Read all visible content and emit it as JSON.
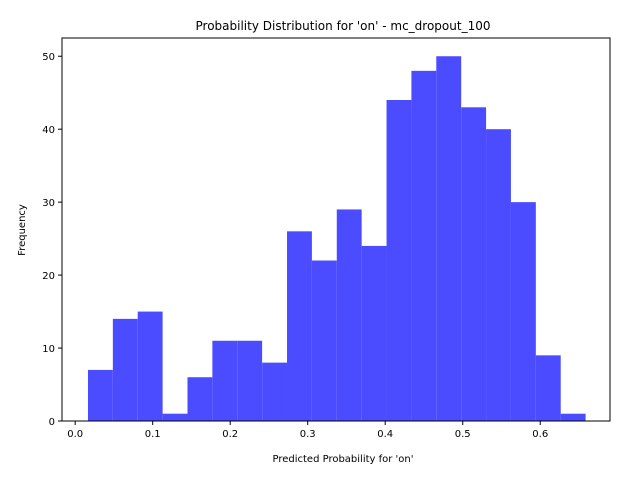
{
  "chart_data": {
    "type": "histogram",
    "title": "Probability Distribution for 'on' - mc_dropout_100",
    "xlabel": "Predicted Probability for 'on'",
    "ylabel": "Frequency",
    "xlim": [
      -0.017,
      0.69
    ],
    "ylim": [
      0,
      52.5
    ],
    "xticks": [
      0.0,
      0.1,
      0.2,
      0.3,
      0.4,
      0.5,
      0.6
    ],
    "xtick_labels": [
      "0.0",
      "0.1",
      "0.2",
      "0.3",
      "0.4",
      "0.5",
      "0.6"
    ],
    "yticks": [
      0,
      10,
      20,
      30,
      40,
      50
    ],
    "ytick_labels": [
      "0",
      "10",
      "20",
      "30",
      "40",
      "50"
    ],
    "bin_start": 0.0165,
    "bin_width": 0.0321,
    "values": [
      7,
      14,
      15,
      1,
      6,
      11,
      11,
      8,
      26,
      22,
      29,
      24,
      44,
      48,
      50,
      43,
      40,
      30,
      9,
      1
    ],
    "bar_color": "#4b4bff",
    "grid": false,
    "legend": "none"
  }
}
